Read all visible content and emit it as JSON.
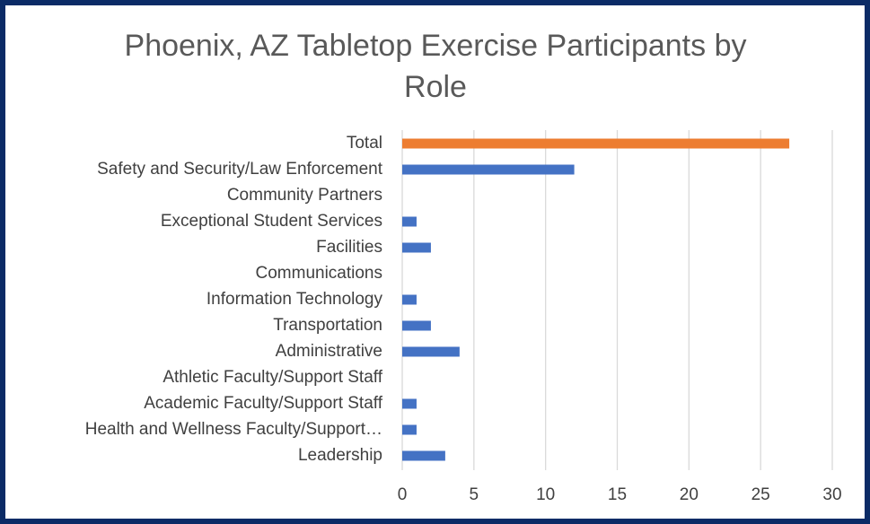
{
  "chart_data": {
    "type": "hbar",
    "title": "Phoenix, AZ Tabletop Exercise Participants by Role",
    "categories": [
      "Total",
      "Safety and Security/Law Enforcement",
      "Community Partners",
      "Exceptional Student Services",
      "Facilities",
      "Communications",
      "Information Technology",
      "Transportation",
      "Administrative",
      "Athletic Faculty/Support Staff",
      "Academic Faculty/Support Staff",
      "Health and Wellness Faculty/Support…",
      "Leadership"
    ],
    "values": [
      27,
      12,
      0,
      1,
      2,
      0,
      1,
      2,
      4,
      0,
      1,
      1,
      3
    ],
    "colors": [
      "#ed7d31",
      "#4472c4",
      "#4472c4",
      "#4472c4",
      "#4472c4",
      "#4472c4",
      "#4472c4",
      "#4472c4",
      "#4472c4",
      "#4472c4",
      "#4472c4",
      "#4472c4",
      "#4472c4"
    ],
    "xlim": [
      0,
      30
    ],
    "xticks": [
      0,
      5,
      10,
      15,
      20,
      25,
      30
    ],
    "grid": true
  }
}
